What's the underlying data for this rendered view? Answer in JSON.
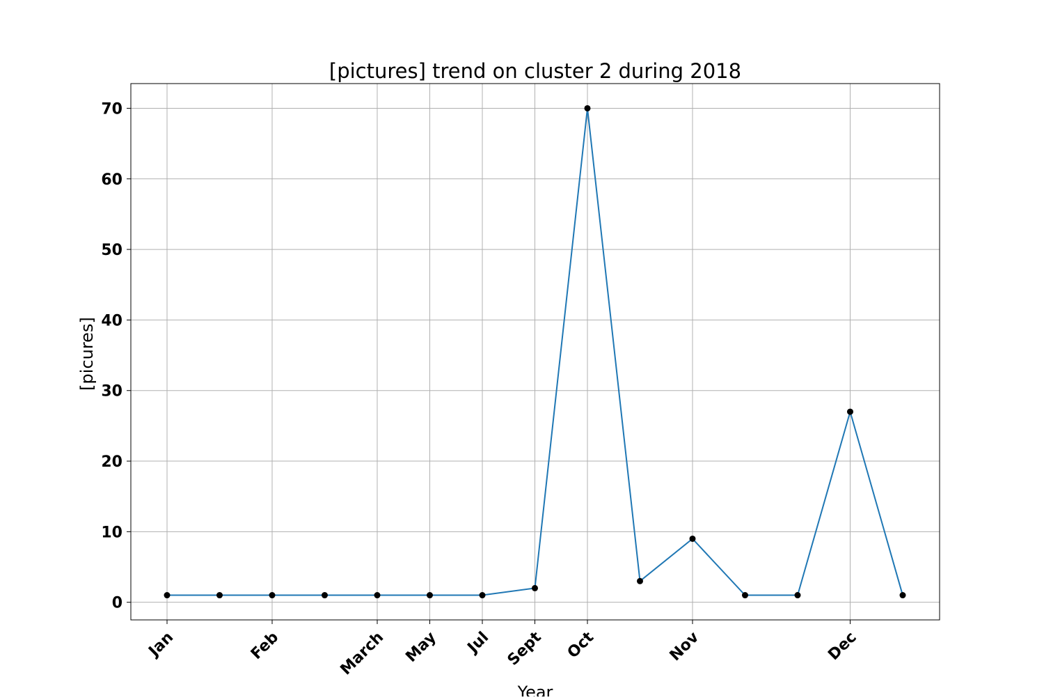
{
  "chart_data": {
    "type": "line",
    "title": "[pictures] trend on cluster 2 during 2018",
    "xlabel": "Year",
    "ylabel": "[picures]",
    "ylim": [
      -2.5,
      73.5
    ],
    "yticks": [
      0,
      10,
      20,
      30,
      40,
      50,
      60,
      70
    ],
    "grid": true,
    "line_color": "#1f77b4",
    "marker_color": "#000000",
    "xticks": [
      {
        "index": 0,
        "label": "Jan"
      },
      {
        "index": 2,
        "label": "Feb"
      },
      {
        "index": 4,
        "label": "March"
      },
      {
        "index": 5,
        "label": "May"
      },
      {
        "index": 6,
        "label": "Jul"
      },
      {
        "index": 7,
        "label": "Sept"
      },
      {
        "index": 8,
        "label": "Oct"
      },
      {
        "index": 10,
        "label": "Nov"
      },
      {
        "index": 13,
        "label": "Dec"
      }
    ],
    "series": [
      {
        "values": [
          1,
          1,
          1,
          1,
          1,
          1,
          1,
          2,
          70,
          3,
          9,
          1,
          1,
          27,
          1
        ]
      }
    ]
  }
}
